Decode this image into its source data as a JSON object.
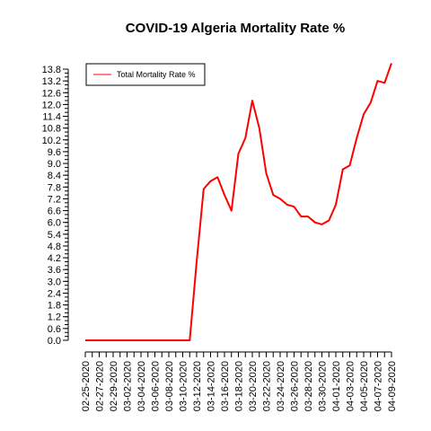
{
  "chart_data": {
    "type": "line",
    "title": "COVID-19 Algeria Mortality Rate %",
    "xlabel": "",
    "ylabel": "",
    "ylim": [
      0,
      13.8
    ],
    "y_ticks": [
      "0.0",
      "0.6",
      "1.2",
      "1.8",
      "2.4",
      "3.0",
      "3.6",
      "4.2",
      "4.8",
      "5.4",
      "6.0",
      "6.6",
      "7.2",
      "7.8",
      "8.4",
      "9.0",
      "9.6",
      "10.2",
      "10.8",
      "11.4",
      "12.0",
      "12.6",
      "13.2",
      "13.8"
    ],
    "x_tick_labels": [
      "02-25-2020",
      "02-27-2020",
      "02-29-2020",
      "03-02-2020",
      "03-04-2020",
      "03-06-2020",
      "03-08-2020",
      "03-10-2020",
      "03-12-2020",
      "03-14-2020",
      "03-16-2020",
      "03-18-2020",
      "03-20-2020",
      "03-22-2020",
      "03-24-2020",
      "03-26-2020",
      "03-28-2020",
      "03-30-2020",
      "04-01-2020",
      "04-03-2020",
      "04-05-2020",
      "04-07-2020",
      "04-09-2020"
    ],
    "grid": false,
    "legend_position": "top-left",
    "series": [
      {
        "name": "Total Mortality Rate %",
        "color": "#ff0000",
        "x": [
          "02-25-2020",
          "02-26-2020",
          "02-27-2020",
          "02-28-2020",
          "02-29-2020",
          "03-01-2020",
          "03-02-2020",
          "03-03-2020",
          "03-04-2020",
          "03-05-2020",
          "03-06-2020",
          "03-07-2020",
          "03-08-2020",
          "03-09-2020",
          "03-10-2020",
          "03-11-2020",
          "03-12-2020",
          "03-13-2020",
          "03-14-2020",
          "03-15-2020",
          "03-16-2020",
          "03-17-2020",
          "03-18-2020",
          "03-19-2020",
          "03-20-2020",
          "03-21-2020",
          "03-22-2020",
          "03-23-2020",
          "03-24-2020",
          "03-25-2020",
          "03-26-2020",
          "03-27-2020",
          "03-28-2020",
          "03-29-2020",
          "03-30-2020",
          "03-31-2020",
          "04-01-2020",
          "04-02-2020",
          "04-03-2020",
          "04-04-2020",
          "04-05-2020",
          "04-06-2020",
          "04-07-2020",
          "04-08-2020",
          "04-09-2020"
        ],
        "values": [
          0,
          0,
          0,
          0,
          0,
          0,
          0,
          0,
          0,
          0,
          0,
          0,
          0,
          0,
          0,
          0,
          4.0,
          7.7,
          8.1,
          8.3,
          7.4,
          6.6,
          9.5,
          10.3,
          12.2,
          10.8,
          8.5,
          7.4,
          7.2,
          6.9,
          6.8,
          6.3,
          6.3,
          6.0,
          5.9,
          6.1,
          6.9,
          8.7,
          8.9,
          10.3,
          11.5,
          12.1,
          13.2,
          13.1,
          14.1
        ]
      }
    ]
  }
}
